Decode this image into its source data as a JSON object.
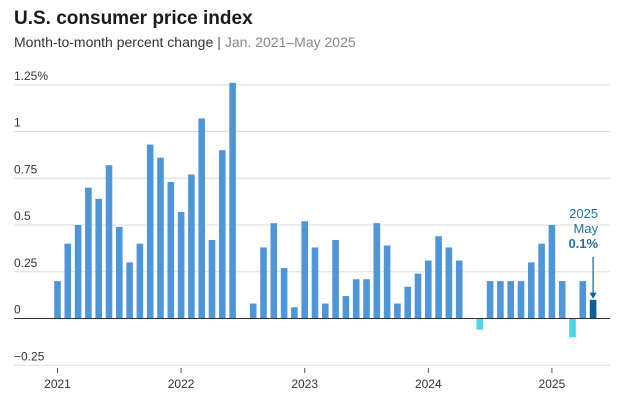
{
  "chart_data": {
    "type": "bar",
    "title": "U.S. consumer price index",
    "subtitle": "Month-to-month percent change",
    "subtitle_range": "Jan. 2021–May 2025",
    "ylim": [
      -0.3,
      1.3
    ],
    "y_ticks": [
      {
        "value": 1.25,
        "label": "1.25%"
      },
      {
        "value": 1,
        "label": "1"
      },
      {
        "value": 0.75,
        "label": "0.75"
      },
      {
        "value": 0.5,
        "label": "0.5"
      },
      {
        "value": 0.25,
        "label": "0.25"
      },
      {
        "value": 0,
        "label": "0"
      },
      {
        "value": -0.25,
        "label": "−0.25"
      }
    ],
    "x_ticks": [
      "2021",
      "2022",
      "2023",
      "2024",
      "2025"
    ],
    "grid": true,
    "colors": {
      "positive": "#4f96d8",
      "negative": "#4fd6e6",
      "highlight": "#0f5f96",
      "grid": "#dddddd",
      "zero_line": "#333333"
    },
    "months": [
      "Jan 2021",
      "Feb 2021",
      "Mar 2021",
      "Apr 2021",
      "May 2021",
      "Jun 2021",
      "Jul 2021",
      "Aug 2021",
      "Sep 2021",
      "Oct 2021",
      "Nov 2021",
      "Dec 2021",
      "Jan 2022",
      "Feb 2022",
      "Mar 2022",
      "Apr 2022",
      "May 2022",
      "Jun 2022",
      "Jul 2022",
      "Aug 2022",
      "Sep 2022",
      "Oct 2022",
      "Nov 2022",
      "Dec 2022",
      "Jan 2023",
      "Feb 2023",
      "Mar 2023",
      "Apr 2023",
      "May 2023",
      "Jun 2023",
      "Jul 2023",
      "Aug 2023",
      "Sep 2023",
      "Oct 2023",
      "Nov 2023",
      "Dec 2023",
      "Jan 2024",
      "Feb 2024",
      "Mar 2024",
      "Apr 2024",
      "May 2024",
      "Jun 2024",
      "Jul 2024",
      "Aug 2024",
      "Sep 2024",
      "Oct 2024",
      "Nov 2024",
      "Dec 2024",
      "Jan 2025",
      "Feb 2025",
      "Mar 2025",
      "Apr 2025",
      "May 2025"
    ],
    "values": [
      0.2,
      0.4,
      0.5,
      0.7,
      0.64,
      0.82,
      0.49,
      0.3,
      0.4,
      0.93,
      0.86,
      0.73,
      0.57,
      0.77,
      1.07,
      0.42,
      0.9,
      1.26,
      0.0,
      0.08,
      0.38,
      0.51,
      0.27,
      0.06,
      0.52,
      0.38,
      0.08,
      0.42,
      0.12,
      0.21,
      0.21,
      0.51,
      0.39,
      0.08,
      0.17,
      0.24,
      0.31,
      0.44,
      0.38,
      0.31,
      0.0,
      -0.06,
      0.2,
      0.2,
      0.2,
      0.2,
      0.3,
      0.4,
      0.5,
      0.2,
      -0.1,
      0.2,
      0.1
    ],
    "annotation": {
      "year": "2025",
      "month": "May",
      "value": "0.1%"
    }
  }
}
